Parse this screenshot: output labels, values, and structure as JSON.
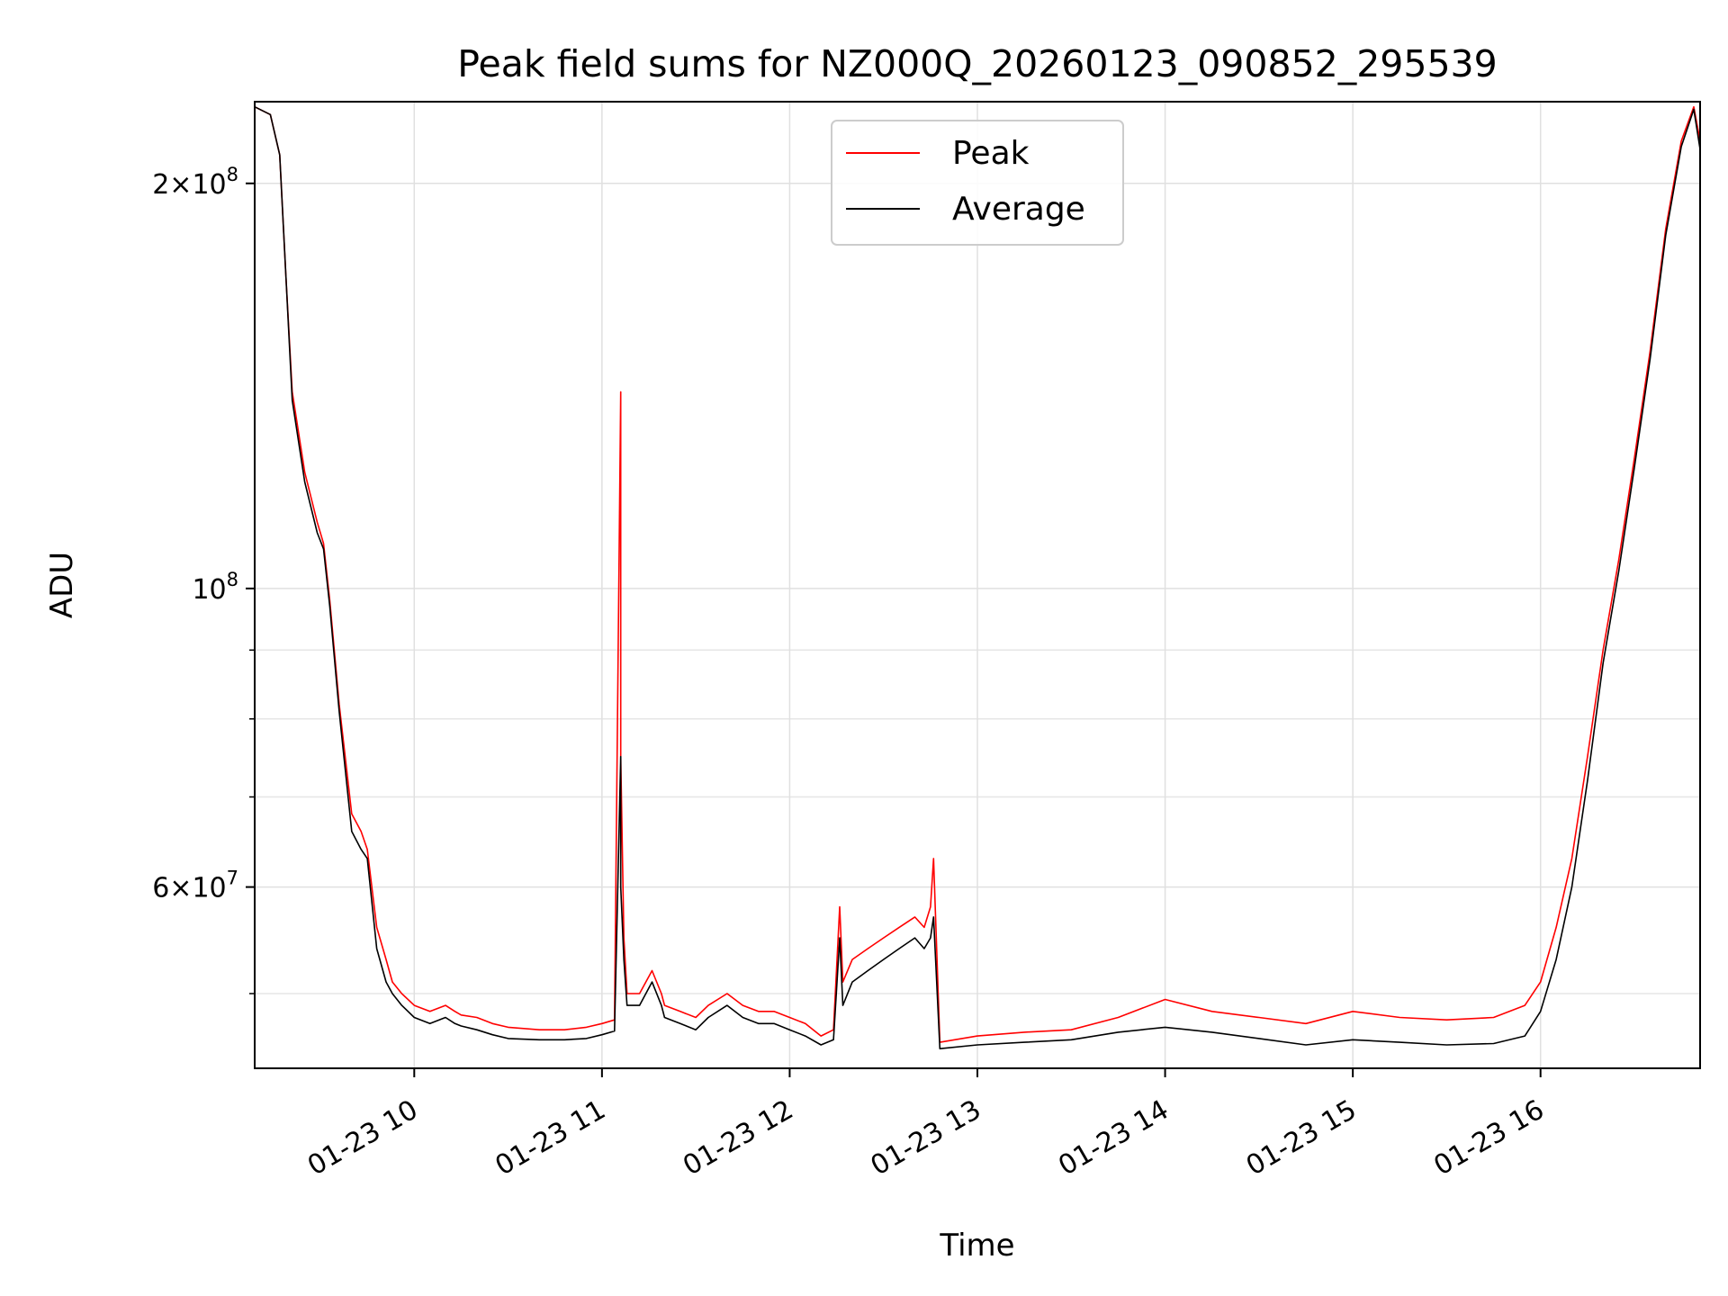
{
  "chart_data": {
    "type": "line",
    "title": "Peak field sums for NZ000Q_20260123_090852_295539",
    "xlabel": "Time",
    "ylabel": "ADU",
    "yscale": "log",
    "xlim": [
      "01-23 09:09",
      "01-23 16:51"
    ],
    "ylim": [
      44000000,
      230000000
    ],
    "grid": true,
    "legend": "upper center",
    "x_ticks": [
      "01-23 10",
      "01-23 11",
      "01-23 12",
      "01-23 13",
      "01-23 14",
      "01-23 15",
      "01-23 16"
    ],
    "y_major_ticks": [
      {
        "value": 200000000,
        "base": "2×10",
        "exp": "8"
      },
      {
        "value": 100000000,
        "base": "10",
        "exp": "8"
      },
      {
        "value": 60000000,
        "base": "6×10",
        "exp": "7"
      }
    ],
    "colors": {
      "Peak": "#ff0000",
      "Average": "#000000"
    },
    "series": [
      {
        "name": "Peak",
        "x": [
          "01-23 09:09",
          "01-23 09:14",
          "01-23 09:17",
          "01-23 09:19",
          "01-23 09:21",
          "01-23 09:25",
          "01-23 09:29",
          "01-23 09:31",
          "01-23 09:33",
          "01-23 09:36",
          "01-23 09:40",
          "01-23 09:43",
          "01-23 09:45",
          "01-23 09:48",
          "01-23 09:51",
          "01-23 09:53",
          "01-23 09:56",
          "01-23 10:00",
          "01-23 10:05",
          "01-23 10:10",
          "01-23 10:13",
          "01-23 10:15",
          "01-23 10:20",
          "01-23 10:25",
          "01-23 10:30",
          "01-23 10:40",
          "01-23 10:48",
          "01-23 10:55",
          "01-23 11:00",
          "01-23 11:04",
          "01-23 11:06",
          "01-23 11:06",
          "01-23 11:07",
          "01-23 11:08",
          "01-23 11:12",
          "01-23 11:16",
          "01-23 11:19",
          "01-23 11:20",
          "01-23 11:25",
          "01-23 11:30",
          "01-23 11:34",
          "01-23 11:40",
          "01-23 11:45",
          "01-23 11:50",
          "01-23 11:55",
          "01-23 12:00",
          "01-23 12:05",
          "01-23 12:10",
          "01-23 12:14",
          "01-23 12:16",
          "01-23 12:17",
          "01-23 12:20",
          "01-23 12:25",
          "01-23 12:30",
          "01-23 12:35",
          "01-23 12:40",
          "01-23 12:43",
          "01-23 12:45",
          "01-23 12:46",
          "01-23 12:48",
          "01-23 13:00",
          "01-23 13:15",
          "01-23 13:30",
          "01-23 13:45",
          "01-23 14:00",
          "01-23 14:15",
          "01-23 14:30",
          "01-23 14:45",
          "01-23 15:00",
          "01-23 15:15",
          "01-23 15:30",
          "01-23 15:45",
          "01-23 15:55",
          "01-23 16:00",
          "01-23 16:05",
          "01-23 16:10",
          "01-23 16:15",
          "01-23 16:20",
          "01-23 16:25",
          "01-23 16:30",
          "01-23 16:35",
          "01-23 16:40",
          "01-23 16:45",
          "01-23 16:49",
          "01-23 16:51"
        ],
        "y": [
          228000000,
          225000000,
          210000000,
          170000000,
          140000000,
          122000000,
          112000000,
          108000000,
          98000000,
          82000000,
          68000000,
          66000000,
          64000000,
          56000000,
          53000000,
          51000000,
          50000000,
          49000000,
          48500000,
          49000000,
          48500000,
          48200000,
          48000000,
          47500000,
          47200000,
          47000000,
          47000000,
          47200000,
          47500000,
          47800000,
          140000000,
          75000000,
          55000000,
          50000000,
          50000000,
          52000000,
          50000000,
          49000000,
          48500000,
          48000000,
          49000000,
          50000000,
          49000000,
          48500000,
          48500000,
          48000000,
          47500000,
          46500000,
          47000000,
          58000000,
          51000000,
          53000000,
          54000000,
          55000000,
          56000000,
          57000000,
          56000000,
          58000000,
          63000000,
          46000000,
          46500000,
          46800000,
          47000000,
          48000000,
          49500000,
          48500000,
          48000000,
          47500000,
          48500000,
          48000000,
          47800000,
          48000000,
          49000000,
          51000000,
          56000000,
          63000000,
          75000000,
          90000000,
          105000000,
          125000000,
          150000000,
          185000000,
          215000000,
          228000000,
          215000000
        ]
      },
      {
        "name": "Average",
        "x": [
          "01-23 09:09",
          "01-23 09:14",
          "01-23 09:17",
          "01-23 09:19",
          "01-23 09:21",
          "01-23 09:25",
          "01-23 09:29",
          "01-23 09:31",
          "01-23 09:33",
          "01-23 09:36",
          "01-23 09:40",
          "01-23 09:43",
          "01-23 09:45",
          "01-23 09:48",
          "01-23 09:51",
          "01-23 09:53",
          "01-23 09:56",
          "01-23 10:00",
          "01-23 10:05",
          "01-23 10:10",
          "01-23 10:13",
          "01-23 10:15",
          "01-23 10:20",
          "01-23 10:25",
          "01-23 10:30",
          "01-23 10:40",
          "01-23 10:48",
          "01-23 10:55",
          "01-23 11:00",
          "01-23 11:04",
          "01-23 11:06",
          "01-23 11:06",
          "01-23 11:07",
          "01-23 11:08",
          "01-23 11:12",
          "01-23 11:16",
          "01-23 11:19",
          "01-23 11:20",
          "01-23 11:25",
          "01-23 11:30",
          "01-23 11:34",
          "01-23 11:40",
          "01-23 11:45",
          "01-23 11:50",
          "01-23 11:55",
          "01-23 12:00",
          "01-23 12:05",
          "01-23 12:10",
          "01-23 12:14",
          "01-23 12:16",
          "01-23 12:17",
          "01-23 12:20",
          "01-23 12:25",
          "01-23 12:30",
          "01-23 12:35",
          "01-23 12:40",
          "01-23 12:43",
          "01-23 12:45",
          "01-23 12:46",
          "01-23 12:48",
          "01-23 13:00",
          "01-23 13:15",
          "01-23 13:30",
          "01-23 13:45",
          "01-23 14:00",
          "01-23 14:15",
          "01-23 14:30",
          "01-23 14:45",
          "01-23 15:00",
          "01-23 15:15",
          "01-23 15:30",
          "01-23 15:45",
          "01-23 15:55",
          "01-23 16:00",
          "01-23 16:05",
          "01-23 16:10",
          "01-23 16:15",
          "01-23 16:20",
          "01-23 16:25",
          "01-23 16:30",
          "01-23 16:35",
          "01-23 16:40",
          "01-23 16:45",
          "01-23 16:49",
          "01-23 16:51"
        ],
        "y": [
          228000000,
          225000000,
          210000000,
          170000000,
          138000000,
          120000000,
          110000000,
          107000000,
          97000000,
          81000000,
          66000000,
          64000000,
          63000000,
          54000000,
          51000000,
          50000000,
          49000000,
          48000000,
          47500000,
          48000000,
          47500000,
          47300000,
          47000000,
          46600000,
          46300000,
          46200000,
          46200000,
          46300000,
          46600000,
          46900000,
          75000000,
          60000000,
          53000000,
          49000000,
          49000000,
          51000000,
          49000000,
          48000000,
          47500000,
          47000000,
          48000000,
          49000000,
          48000000,
          47500000,
          47500000,
          47000000,
          46500000,
          45800000,
          46200000,
          55000000,
          49000000,
          51000000,
          52000000,
          53000000,
          54000000,
          55000000,
          54000000,
          55000000,
          57000000,
          45500000,
          45800000,
          46000000,
          46200000,
          46800000,
          47200000,
          46800000,
          46300000,
          45800000,
          46200000,
          46000000,
          45800000,
          45900000,
          46500000,
          48500000,
          53000000,
          60000000,
          72000000,
          88000000,
          103000000,
          123000000,
          148000000,
          183000000,
          213000000,
          227000000,
          212000000
        ]
      }
    ]
  }
}
